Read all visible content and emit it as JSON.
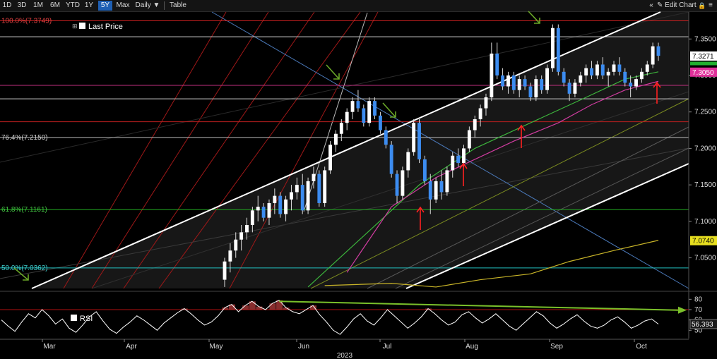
{
  "toolbar": {
    "ranges": [
      "1D",
      "3D",
      "1M",
      "6M",
      "YTD",
      "1Y",
      "5Y",
      "Max"
    ],
    "active_range": "5Y",
    "frequency": "Daily ▼",
    "table_label": "Table",
    "collapse_label": "«",
    "edit_chart_label": "Edit Chart",
    "lock_label": "🔒",
    "settings_label": "≡",
    "collapse_icon": "double-chevron-left-icon",
    "edit_icon": "pencil-icon",
    "lock_icon": "lock-icon",
    "settings_icon": "settings-icon"
  },
  "colors": {
    "background": "#000000",
    "candle_up": "#ffffff",
    "candle_down": "#3c8cf0",
    "fib_100": "#d02020",
    "fib_764": "#bbbbbb",
    "fib_618": "#22aa22",
    "fib_50": "#22c0c0",
    "last_price_tag": "#ffffff",
    "ma_green": "#3cb43c",
    "ma_magenta": "#d03ca0",
    "ma_olive": "#c8b428",
    "rsi_line": "#ffffff",
    "rsi_trend": "#7ac02a",
    "arrow_red": "#ff2020",
    "arrow_green": "#6aa828"
  },
  "chart_data": [
    {
      "type": "candlestick",
      "title": "",
      "legend": [
        "Last Price"
      ],
      "legend_placement": "top-left",
      "year_label": "2023",
      "x_ticks": [
        "Mar",
        "Apr",
        "May",
        "Jun",
        "Jul",
        "Aug",
        "Sep",
        "Oct"
      ],
      "y_ticks": [
        7.35,
        7.3,
        7.25,
        7.2,
        7.15,
        7.1,
        7.05
      ],
      "y_tick_labels": [
        "7.3500",
        "7.3000",
        "7.2500",
        "7.2000",
        "7.1500",
        "7.1000",
        "7.0500"
      ],
      "ylim": [
        7.008,
        7.387
      ],
      "grid": false,
      "fib_levels": [
        {
          "label": "100.0%(7.3749)",
          "value": 7.3749
        },
        {
          "label": "76.4%(7.2150)",
          "value": 7.215
        },
        {
          "label": "61.8%(7.1161)",
          "value": 7.1161
        },
        {
          "label": "50.0%(7.0362)",
          "value": 7.0362
        }
      ],
      "horizontal_levels": [
        7.353,
        7.2865,
        7.268,
        7.2365
      ],
      "price_tags": [
        {
          "label": "7.3271",
          "value": 7.3271
        },
        {
          "label": "7.3050",
          "value": 7.305
        },
        {
          "label": "7.0740",
          "value": 7.074
        }
      ],
      "candles": [
        [
          7.02,
          7.05,
          7.01,
          7.045
        ],
        [
          7.045,
          7.07,
          7.03,
          7.06
        ],
        [
          7.06,
          7.085,
          7.05,
          7.075
        ],
        [
          7.075,
          7.095,
          7.06,
          7.085
        ],
        [
          7.085,
          7.105,
          7.075,
          7.095
        ],
        [
          7.095,
          7.12,
          7.085,
          7.115
        ],
        [
          7.115,
          7.135,
          7.1,
          7.12
        ],
        [
          7.12,
          7.125,
          7.1,
          7.105
        ],
        [
          7.105,
          7.13,
          7.095,
          7.125
        ],
        [
          7.125,
          7.145,
          7.11,
          7.135
        ],
        [
          7.135,
          7.14,
          7.105,
          7.11
        ],
        [
          7.11,
          7.135,
          7.1,
          7.13
        ],
        [
          7.13,
          7.15,
          7.115,
          7.14
        ],
        [
          7.14,
          7.16,
          7.13,
          7.15
        ],
        [
          7.15,
          7.165,
          7.11,
          7.115
        ],
        [
          7.115,
          7.16,
          7.11,
          7.155
        ],
        [
          7.155,
          7.175,
          7.145,
          7.165
        ],
        [
          7.165,
          7.17,
          7.12,
          7.125
        ],
        [
          7.125,
          7.175,
          7.12,
          7.17
        ],
        [
          7.17,
          7.21,
          7.165,
          7.205
        ],
        [
          7.205,
          7.225,
          7.195,
          7.22
        ],
        [
          7.22,
          7.24,
          7.21,
          7.235
        ],
        [
          7.235,
          7.255,
          7.225,
          7.25
        ],
        [
          7.25,
          7.27,
          7.24,
          7.265
        ],
        [
          7.265,
          7.28,
          7.25,
          7.255
        ],
        [
          7.255,
          7.26,
          7.23,
          7.235
        ],
        [
          7.235,
          7.27,
          7.23,
          7.265
        ],
        [
          7.265,
          7.27,
          7.24,
          7.245
        ],
        [
          7.245,
          7.25,
          7.22,
          7.225
        ],
        [
          7.225,
          7.23,
          7.2,
          7.205
        ],
        [
          7.205,
          7.21,
          7.16,
          7.165
        ],
        [
          7.165,
          7.17,
          7.125,
          7.135
        ],
        [
          7.135,
          7.175,
          7.13,
          7.17
        ],
        [
          7.17,
          7.2,
          7.16,
          7.195
        ],
        [
          7.195,
          7.24,
          7.19,
          7.235
        ],
        [
          7.235,
          7.24,
          7.18,
          7.185
        ],
        [
          7.185,
          7.19,
          7.15,
          7.155
        ],
        [
          7.155,
          7.165,
          7.11,
          7.13
        ],
        [
          7.13,
          7.16,
          7.125,
          7.155
        ],
        [
          7.155,
          7.17,
          7.13,
          7.14
        ],
        [
          7.14,
          7.175,
          7.135,
          7.17
        ],
        [
          7.17,
          7.195,
          7.16,
          7.19
        ],
        [
          7.19,
          7.2,
          7.175,
          7.18
        ],
        [
          7.18,
          7.205,
          7.175,
          7.2
        ],
        [
          7.2,
          7.23,
          7.195,
          7.225
        ],
        [
          7.225,
          7.245,
          7.215,
          7.24
        ],
        [
          7.24,
          7.26,
          7.23,
          7.255
        ],
        [
          7.255,
          7.275,
          7.245,
          7.27
        ],
        [
          7.27,
          7.345,
          7.265,
          7.33
        ],
        [
          7.33,
          7.345,
          7.295,
          7.3
        ],
        [
          7.3,
          7.31,
          7.28,
          7.285
        ],
        [
          7.285,
          7.305,
          7.275,
          7.3
        ],
        [
          7.3,
          7.305,
          7.275,
          7.28
        ],
        [
          7.28,
          7.3,
          7.27,
          7.295
        ],
        [
          7.295,
          7.3,
          7.28,
          7.285
        ],
        [
          7.285,
          7.29,
          7.265,
          7.27
        ],
        [
          7.27,
          7.3,
          7.265,
          7.295
        ],
        [
          7.295,
          7.3,
          7.275,
          7.28
        ],
        [
          7.28,
          7.315,
          7.275,
          7.31
        ],
        [
          7.31,
          7.37,
          7.305,
          7.365
        ],
        [
          7.365,
          7.37,
          7.3,
          7.305
        ],
        [
          7.305,
          7.31,
          7.285,
          7.29
        ],
        [
          7.29,
          7.295,
          7.265,
          7.275
        ],
        [
          7.275,
          7.295,
          7.27,
          7.29
        ],
        [
          7.29,
          7.305,
          7.285,
          7.3
        ],
        [
          7.3,
          7.315,
          7.29,
          7.31
        ],
        [
          7.31,
          7.32,
          7.295,
          7.3
        ],
        [
          7.3,
          7.32,
          7.295,
          7.315
        ],
        [
          7.315,
          7.325,
          7.295,
          7.3
        ],
        [
          7.3,
          7.31,
          7.285,
          7.305
        ],
        [
          7.305,
          7.32,
          7.3,
          7.315
        ],
        [
          7.315,
          7.325,
          7.3,
          7.305
        ],
        [
          7.305,
          7.31,
          7.285,
          7.29
        ],
        [
          7.29,
          7.3,
          7.27,
          7.285
        ],
        [
          7.285,
          7.3,
          7.28,
          7.295
        ],
        [
          7.295,
          7.31,
          7.29,
          7.305
        ],
        [
          7.305,
          7.32,
          7.3,
          7.315
        ],
        [
          7.315,
          7.345,
          7.31,
          7.34
        ],
        [
          7.34,
          7.345,
          7.32,
          7.327
        ]
      ],
      "moving_averages": [
        {
          "name": "MA green",
          "color": "#3cb43c",
          "points": [
            [
              15,
              7.01
            ],
            [
              25,
              7.08
            ],
            [
              35,
              7.15
            ],
            [
              45,
              7.2
            ],
            [
              55,
              7.235
            ],
            [
              65,
              7.27
            ],
            [
              72,
              7.295
            ],
            [
              78,
              7.305
            ]
          ]
        },
        {
          "name": "MA magenta",
          "color": "#d03ca0",
          "points": [
            [
              22,
              7.03
            ],
            [
              30,
              7.12
            ],
            [
              38,
              7.16
            ],
            [
              45,
              7.185
            ],
            [
              52,
              7.21
            ],
            [
              60,
              7.235
            ],
            [
              66,
              7.26
            ],
            [
              72,
              7.28
            ],
            [
              78,
              7.292
            ]
          ]
        },
        {
          "name": "MA olive",
          "color": "#c8b428",
          "points": [
            [
              18,
              7.012
            ],
            [
              30,
              7.015
            ],
            [
              38,
              7.01
            ],
            [
              46,
              7.02
            ],
            [
              55,
              7.028
            ],
            [
              62,
              7.045
            ],
            [
              70,
              7.06
            ],
            [
              78,
              7.074
            ]
          ]
        }
      ]
    },
    {
      "type": "line",
      "title": "",
      "legend": [
        "RSI"
      ],
      "legend_placement": "bottom-left",
      "y_ticks": [
        80,
        70,
        60,
        50
      ],
      "ylim": [
        42,
        85
      ],
      "last_value_label": "56.393",
      "series": [
        {
          "name": "RSI",
          "values": [
            60,
            54,
            49,
            58,
            66,
            62,
            70,
            64,
            56,
            61,
            52,
            48,
            55,
            63,
            68,
            59,
            51,
            47,
            53,
            58,
            64,
            60,
            55,
            50,
            57,
            62,
            67,
            71,
            66,
            60,
            55,
            58,
            64,
            72,
            75,
            68,
            74,
            78,
            73,
            70,
            76,
            79,
            72,
            68,
            66,
            70,
            74,
            65,
            58,
            50,
            46,
            53,
            61,
            66,
            59,
            55,
            62,
            70,
            64,
            58,
            52,
            57,
            63,
            71,
            66,
            60,
            55,
            58,
            65,
            68,
            62,
            57,
            61,
            66,
            60,
            54,
            50,
            56,
            62,
            68,
            64,
            57,
            52,
            56,
            61,
            65,
            59,
            54,
            52,
            55,
            60,
            63,
            58,
            52,
            55,
            59,
            61,
            56
          ]
        }
      ]
    }
  ]
}
